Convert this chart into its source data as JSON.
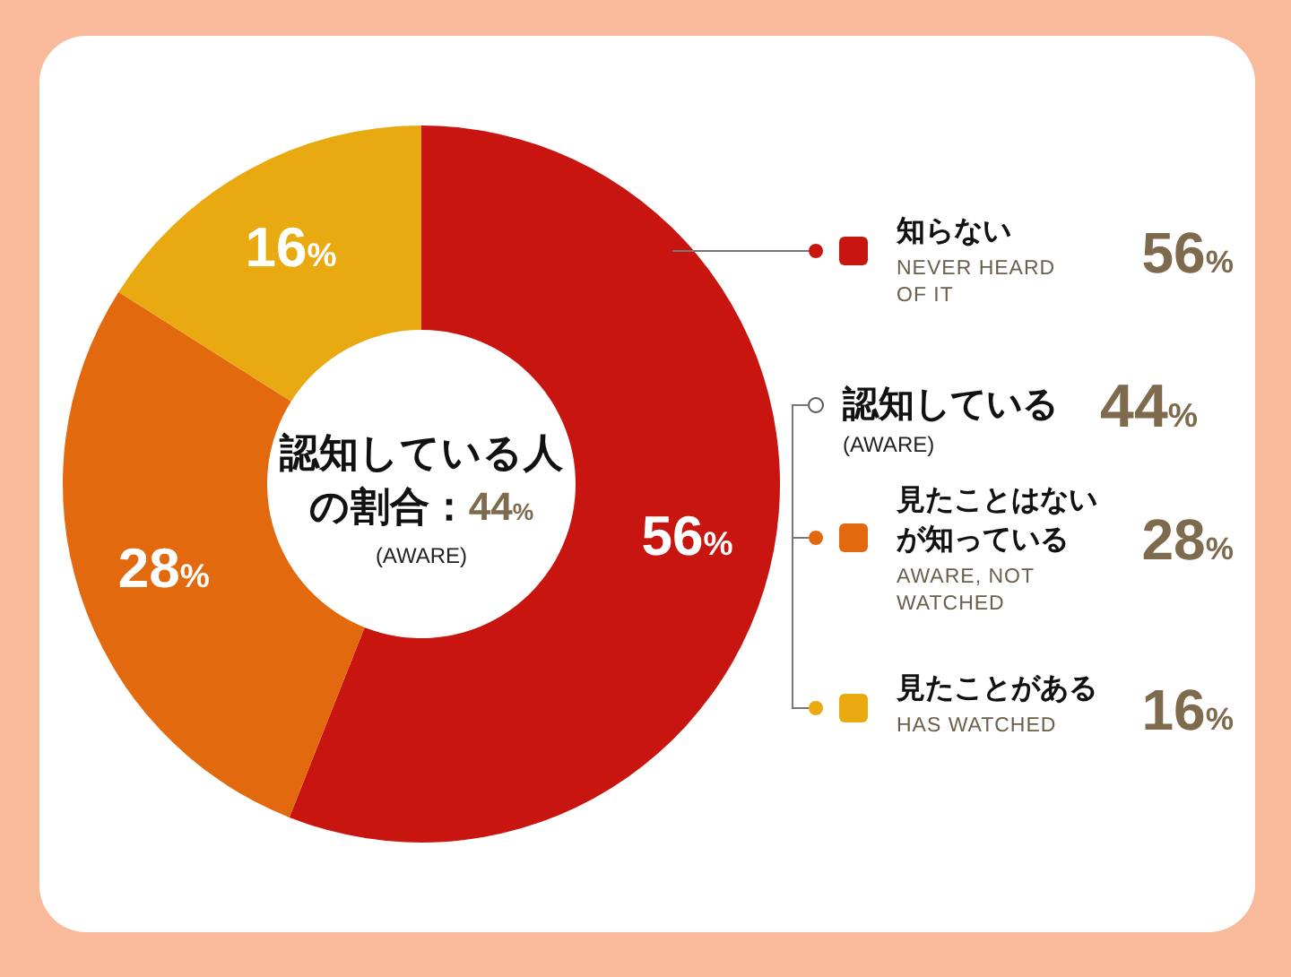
{
  "chart_data": {
    "type": "donut",
    "categories": [
      "知らない",
      "見たことはないが知っている",
      "見たことがある"
    ],
    "values": [
      56,
      28,
      16
    ],
    "colors": [
      "#c8150f",
      "#e2690d",
      "#e9a911"
    ],
    "value_labels": [
      "56%",
      "28%",
      "16%"
    ],
    "legend": "right",
    "annotations": [
      "認知している人の割合：44% (AWARE)",
      "NEVER HEARD OF IT",
      "認知している 44% (AWARE)",
      "AWARE, NOT WATCHED",
      "HAS WATCHED"
    ]
  }
}
